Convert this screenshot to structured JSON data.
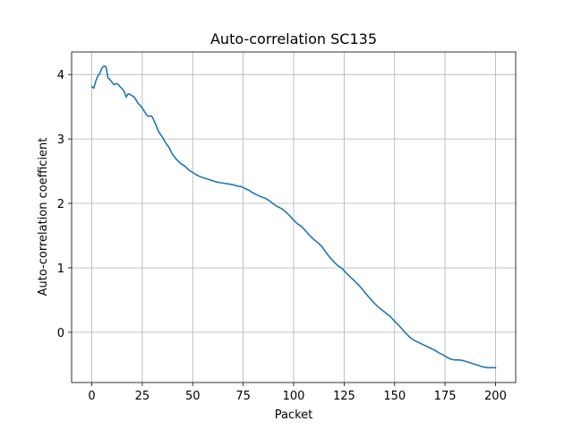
{
  "chart_data": {
    "type": "line",
    "title": "Auto-correlation SC135",
    "xlabel": "Packet",
    "ylabel": "Auto-correlation coefficient",
    "xlim": [
      -10,
      210
    ],
    "ylim": [
      -0.78,
      4.35
    ],
    "xticks": [
      0,
      25,
      50,
      75,
      100,
      125,
      150,
      175,
      200
    ],
    "yticks": [
      0,
      1,
      2,
      3,
      4
    ],
    "grid": true,
    "series": [
      {
        "color": "#1f77b4",
        "x": [
          0,
          1,
          2,
          3,
          4,
          5,
          6,
          7,
          8,
          9,
          10,
          11,
          12,
          13,
          14,
          15,
          16,
          17,
          18,
          19,
          20,
          21,
          22,
          23,
          24,
          25,
          26,
          27,
          28,
          29,
          30,
          31,
          32,
          33,
          34,
          35,
          36,
          37,
          38,
          39,
          40,
          42,
          44,
          46,
          48,
          50,
          52,
          54,
          56,
          58,
          60,
          62,
          64,
          66,
          68,
          70,
          72,
          74,
          76,
          78,
          80,
          82,
          84,
          86,
          88,
          90,
          92,
          94,
          96,
          98,
          100,
          102,
          104,
          106,
          108,
          110,
          112,
          114,
          116,
          118,
          120,
          122,
          124,
          126,
          128,
          130,
          132,
          134,
          136,
          138,
          140,
          142,
          144,
          146,
          148,
          150,
          152,
          154,
          156,
          158,
          160,
          162,
          164,
          166,
          168,
          170,
          172,
          174,
          176,
          178,
          180,
          182,
          184,
          186,
          188,
          190,
          192,
          194,
          196,
          198,
          200
        ],
        "y": [
          3.81,
          3.79,
          3.9,
          3.98,
          4.02,
          4.1,
          4.13,
          4.12,
          3.95,
          3.92,
          3.88,
          3.84,
          3.86,
          3.85,
          3.81,
          3.78,
          3.74,
          3.65,
          3.7,
          3.69,
          3.67,
          3.65,
          3.6,
          3.55,
          3.52,
          3.48,
          3.43,
          3.38,
          3.35,
          3.36,
          3.34,
          3.27,
          3.2,
          3.12,
          3.07,
          3.03,
          2.97,
          2.92,
          2.88,
          2.82,
          2.76,
          2.68,
          2.62,
          2.58,
          2.52,
          2.48,
          2.44,
          2.41,
          2.39,
          2.37,
          2.35,
          2.33,
          2.32,
          2.31,
          2.3,
          2.29,
          2.27,
          2.26,
          2.23,
          2.2,
          2.16,
          2.13,
          2.1,
          2.08,
          2.04,
          1.99,
          1.95,
          1.92,
          1.87,
          1.81,
          1.74,
          1.68,
          1.64,
          1.57,
          1.5,
          1.44,
          1.39,
          1.33,
          1.24,
          1.16,
          1.09,
          1.03,
          0.99,
          0.92,
          0.86,
          0.8,
          0.74,
          0.67,
          0.59,
          0.52,
          0.45,
          0.39,
          0.34,
          0.29,
          0.24,
          0.17,
          0.11,
          0.04,
          -0.03,
          -0.09,
          -0.13,
          -0.16,
          -0.19,
          -0.22,
          -0.25,
          -0.28,
          -0.32,
          -0.35,
          -0.39,
          -0.42,
          -0.43,
          -0.43,
          -0.44,
          -0.46,
          -0.48,
          -0.5,
          -0.52,
          -0.54,
          -0.55,
          -0.55,
          -0.55
        ]
      }
    ]
  }
}
